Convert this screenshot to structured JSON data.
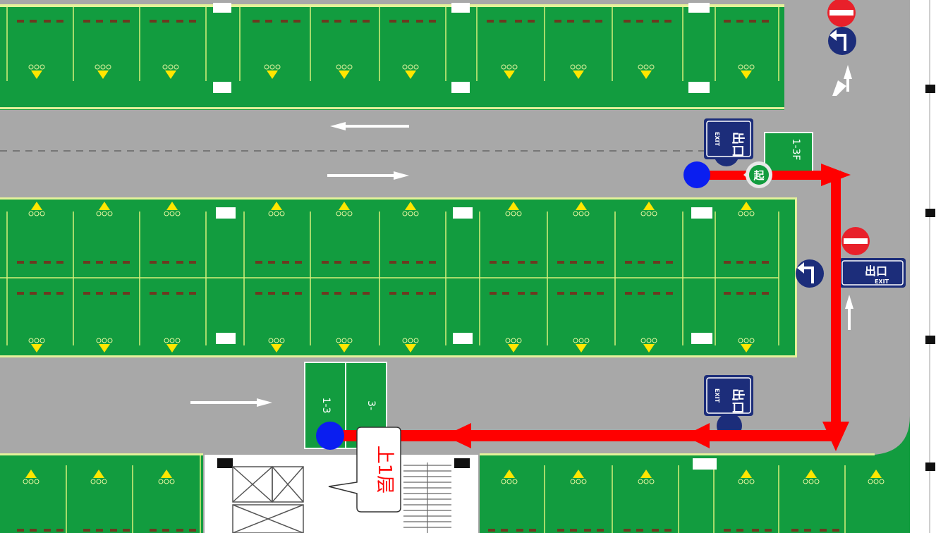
{
  "map": {
    "exit_sign": {
      "cn": "出口",
      "en": "EXIT"
    },
    "start_marker": "起",
    "callout": "上1层",
    "zone_sign_top": "1-3F",
    "zone_sign_bottom_a": "1-3",
    "zone_sign_bottom_b": "3-",
    "colors": {
      "parking_green": "#129c3f",
      "road_gray": "#a8a8a8",
      "route_red": "#ff0000",
      "point_blue": "#0a1ef0",
      "sign_navy": "#1c2d7a",
      "no_entry_red": "#e8202a"
    },
    "icons": [
      "no-entry-icon",
      "turn-arrow-icon",
      "exit-sign-icon",
      "start-pin-icon",
      "elevator-icon",
      "stairs-icon"
    ]
  }
}
